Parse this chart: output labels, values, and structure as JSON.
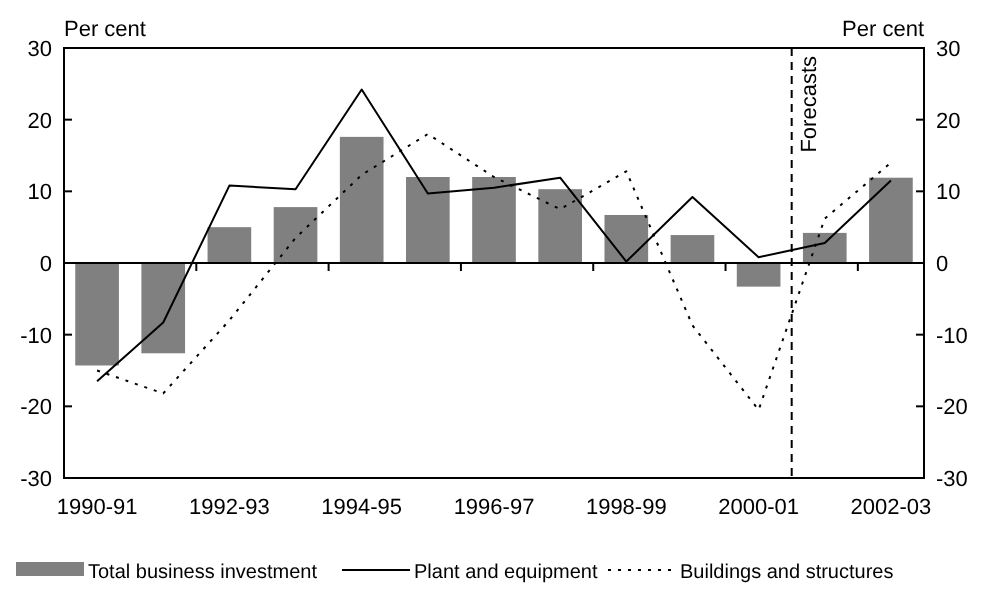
{
  "chart_data": {
    "type": "bar",
    "ylabel": "Per cent",
    "y2label": "Per cent",
    "categories": [
      "1990-91",
      null,
      "1992-93",
      null,
      "1994-95",
      null,
      "1996-97",
      null,
      "1998-99",
      null,
      "2000-01",
      null,
      "2002-03"
    ],
    "series": [
      {
        "name": "Total business investment",
        "color": "#808080",
        "values": [
          -14.3,
          -12.6,
          5,
          7.8,
          17.6,
          12,
          12,
          10.3,
          6.7,
          3.9,
          -3.3,
          4.2,
          11.9
        ]
      },
      {
        "name": "Plant and equipment",
        "type": "line",
        "color": "#000000",
        "line_style": "solid",
        "values": [
          -16.5,
          -8.3,
          10.8,
          10.3,
          24.2,
          9.7,
          10.5,
          11.9,
          0.2,
          9.2,
          0.8,
          2.8,
          11.5
        ]
      },
      {
        "name": "Buildings and structures",
        "type": "line",
        "color": "#000000",
        "line_style": "dotted",
        "values": [
          -15,
          -18.2,
          -8,
          3.5,
          12.3,
          18,
          12,
          7.5,
          12.8,
          -8.7,
          -20.5,
          6.2,
          14
        ]
      }
    ],
    "ylim": [
      -30,
      30
    ],
    "yticks": [
      -30,
      -20,
      -10,
      0,
      10,
      20,
      30
    ],
    "y2lim": [
      -30,
      30
    ],
    "y2ticks": [
      -30,
      -20,
      -10,
      0,
      10,
      20,
      30
    ],
    "ref_lines": [
      {
        "axis": "x",
        "value": "2000-01",
        "label": "Forecasts",
        "line_style": "dashed",
        "color": "#000000"
      }
    ],
    "grid": false,
    "legend": "bottom"
  }
}
